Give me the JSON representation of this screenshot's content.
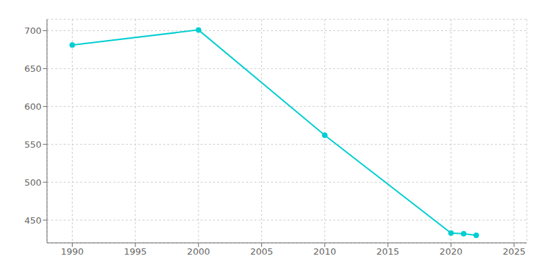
{
  "chart_data": {
    "type": "line",
    "x": [
      1990,
      2000,
      2010,
      2020,
      2021,
      2022
    ],
    "values": [
      681,
      701,
      562,
      433,
      432,
      430
    ],
    "color": "#00CED1",
    "marker": "circle",
    "xlim": [
      1988,
      2026
    ],
    "ylim": [
      420,
      715
    ],
    "xticks": [
      1990,
      1995,
      2000,
      2005,
      2010,
      2015,
      2020,
      2025
    ],
    "yticks": [
      450,
      500,
      550,
      600,
      650,
      700
    ],
    "grid": true
  }
}
